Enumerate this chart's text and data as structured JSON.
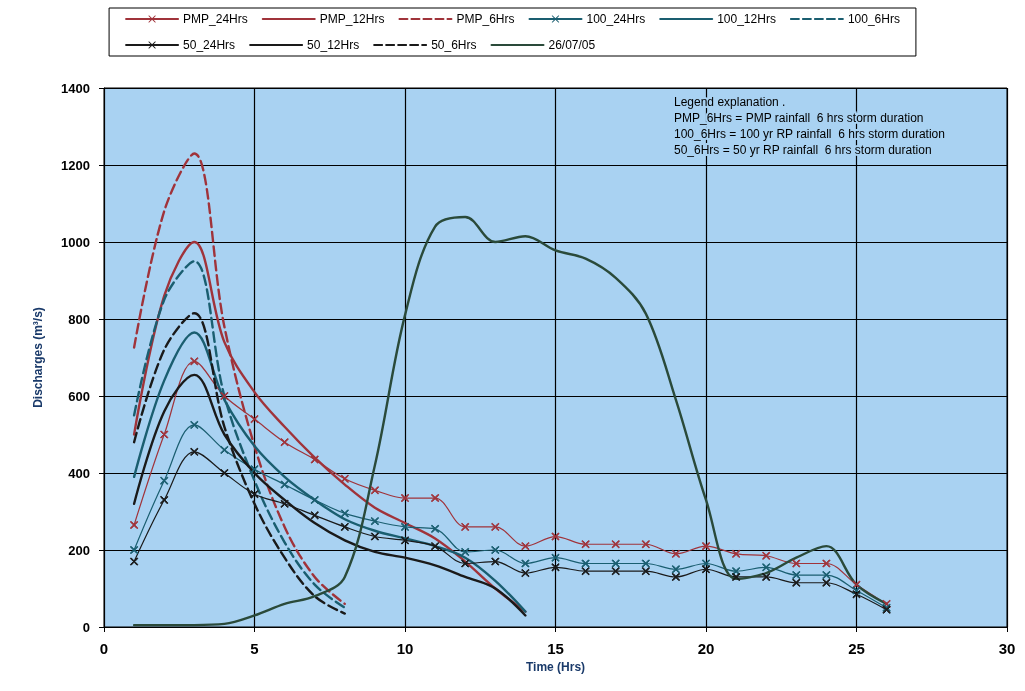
{
  "chart_data": {
    "type": "line",
    "xlabel": "Time (Hrs)",
    "ylabel": "Discharges (m³/s)",
    "xlim": [
      0,
      30
    ],
    "xticks": [
      0,
      5,
      10,
      15,
      20,
      25,
      30
    ],
    "ylim": [
      0,
      1400
    ],
    "yticks": [
      0,
      200,
      400,
      600,
      800,
      1000,
      1200,
      1400
    ],
    "grid": true,
    "legend": "top",
    "x": [
      1,
      2,
      3,
      4,
      5,
      6,
      7,
      8,
      9,
      10,
      11,
      12,
      13,
      14,
      15,
      16,
      17,
      18,
      19,
      20,
      21,
      22,
      23,
      24,
      25,
      26
    ],
    "series": [
      {
        "name": "PMP_24Hrs",
        "color": "#a0333a",
        "marker": "cross",
        "line_style": "solid",
        "values": [
          265,
          500,
          690,
          600,
          540,
          480,
          435,
          385,
          355,
          335,
          335,
          260,
          260,
          210,
          235,
          215,
          215,
          215,
          190,
          210,
          190,
          185,
          165,
          165,
          110,
          60
        ]
      },
      {
        "name": "PMP_12Hrs",
        "color": "#a0333a",
        "marker": "none",
        "line_style": "solid",
        "values": [
          500,
          860,
          1000,
          740,
          610,
          520,
          440,
          370,
          310,
          270,
          230,
          170,
          100,
          40,
          null,
          null,
          null,
          null,
          null,
          null,
          null,
          null,
          null,
          null,
          null,
          null
        ]
      },
      {
        "name": "PMP_6Hrs",
        "color": "#a0333a",
        "marker": "none",
        "line_style": "dashed",
        "values": [
          726,
          1080,
          1230,
          780,
          470,
          260,
          130,
          60,
          null,
          null,
          null,
          null,
          null,
          null,
          null,
          null,
          null,
          null,
          null,
          null,
          null,
          null,
          null,
          null,
          null,
          null
        ]
      },
      {
        "name": "100_24Hrs",
        "color": "#1a5e70",
        "marker": "cross",
        "line_style": "solid",
        "values": [
          200,
          380,
          525,
          460,
          410,
          370,
          330,
          295,
          275,
          260,
          255,
          195,
          200,
          165,
          180,
          165,
          165,
          165,
          150,
          165,
          145,
          155,
          135,
          135,
          95,
          50
        ]
      },
      {
        "name": "100_12Hrs",
        "color": "#1a5e70",
        "marker": "none",
        "line_style": "solid",
        "values": [
          390,
          640,
          765,
          590,
          470,
          390,
          330,
          280,
          250,
          230,
          210,
          180,
          120,
          40,
          null,
          null,
          null,
          null,
          null,
          null,
          null,
          null,
          null,
          null,
          null,
          null
        ]
      },
      {
        "name": "100_6Hrs",
        "color": "#1a5e70",
        "marker": "none",
        "line_style": "dashed",
        "values": [
          550,
          850,
          950,
          600,
          380,
          220,
          110,
          50,
          null,
          null,
          null,
          null,
          null,
          null,
          null,
          null,
          null,
          null,
          null,
          null,
          null,
          null,
          null,
          null,
          null,
          null
        ]
      },
      {
        "name": "50_24Hrs",
        "color": "#1a1a1a",
        "marker": "cross",
        "line_style": "solid",
        "values": [
          170,
          330,
          455,
          400,
          345,
          320,
          290,
          260,
          235,
          225,
          210,
          165,
          170,
          140,
          155,
          145,
          145,
          145,
          130,
          150,
          130,
          130,
          115,
          115,
          85,
          45
        ]
      },
      {
        "name": "50_12Hrs",
        "color": "#1a1a1a",
        "marker": "none",
        "line_style": "solid",
        "values": [
          320,
          560,
          655,
          500,
          400,
          330,
          270,
          225,
          195,
          180,
          160,
          130,
          100,
          30,
          null,
          null,
          null,
          null,
          null,
          null,
          null,
          null,
          null,
          null,
          null,
          null
        ]
      },
      {
        "name": "50_6Hrs",
        "color": "#1a1a1a",
        "marker": "none",
        "line_style": "dashed",
        "values": [
          480,
          720,
          815,
          520,
          320,
          180,
          80,
          35,
          null,
          null,
          null,
          null,
          null,
          null,
          null,
          null,
          null,
          null,
          null,
          null,
          null,
          null,
          null,
          null,
          null,
          null
        ]
      },
      {
        "name": "26/07/05",
        "color": "#2a4a3a",
        "marker": "none",
        "line_style": "solid",
        "values": [
          5,
          5,
          5,
          8,
          30,
          60,
          80,
          130,
          420,
          810,
          1040,
          1065,
          1000,
          1015,
          978,
          957,
          907,
          814,
          590,
          330,
          125,
          140,
          180,
          210,
          110,
          60
        ]
      }
    ],
    "annotations": [
      "Legend explanation .",
      "PMP_6Hrs = PMP rainfall  6 hrs storm duration",
      "100_6Hrs = 100 yr RP rainfall  6 hrs storm duration",
      "50_6Hrs = 50 yr RP rainfall  6 hrs storm duration"
    ]
  }
}
